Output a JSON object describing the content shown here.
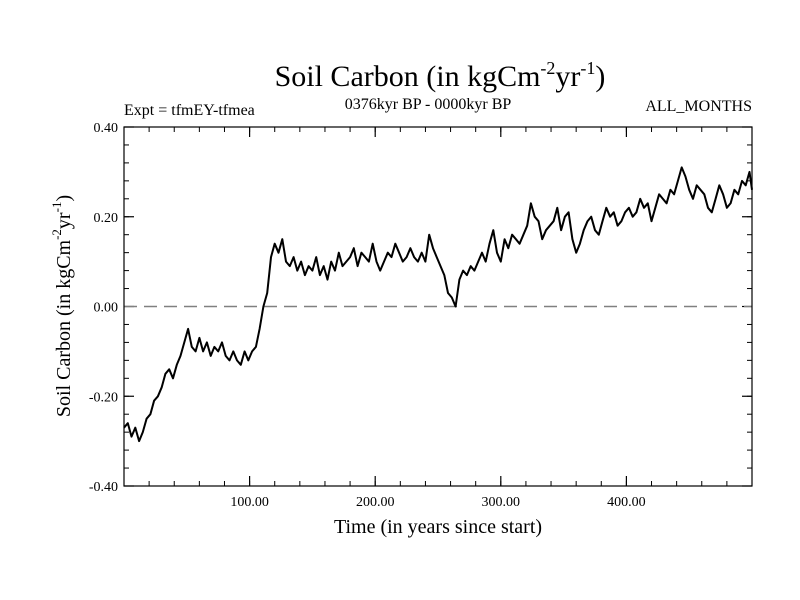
{
  "chart_data": {
    "type": "line",
    "title": "Soil Carbon (in kgCm",
    "title_sup1": "-2",
    "title_mid": "yr",
    "title_sup2": "-1",
    "title_end": ")",
    "left_label": "Expt = tfmEY-tfmea",
    "center_label": "0376kyr BP - 0000kyr BP",
    "right_label": "ALL_MONTHS",
    "xlabel": "Time (in years since start)",
    "ylabel": "Soil Carbon (in kgCm",
    "ylabel_sup1": "-2",
    "ylabel_mid": "yr",
    "ylabel_sup2": "-1",
    "ylabel_end": ")",
    "xlim": [
      0,
      500
    ],
    "ylim": [
      -0.4,
      0.4
    ],
    "x_ticks": [
      100,
      200,
      300,
      400
    ],
    "x_tick_labels": [
      "100.00",
      "200.00",
      "300.00",
      "400.00"
    ],
    "y_ticks": [
      -0.4,
      -0.2,
      0.0,
      0.2,
      0.4
    ],
    "y_tick_labels": [
      "-0.40",
      "-0.20",
      "0.00",
      "0.20",
      "0.40"
    ],
    "reference_line": {
      "y": 0.0,
      "style": "dashed",
      "color": "#808080"
    },
    "series": [
      {
        "color": "#000000",
        "x": [
          0,
          3,
          6,
          9,
          12,
          15,
          18,
          21,
          24,
          27,
          30,
          33,
          36,
          39,
          42,
          45,
          48,
          51,
          54,
          57,
          60,
          63,
          66,
          69,
          72,
          75,
          78,
          81,
          84,
          87,
          90,
          93,
          96,
          99,
          102,
          105,
          108,
          111,
          114,
          117,
          120,
          123,
          126,
          129,
          132,
          135,
          138,
          141,
          144,
          147,
          150,
          153,
          156,
          159,
          162,
          165,
          168,
          171,
          174,
          177,
          180,
          183,
          186,
          189,
          192,
          195,
          198,
          201,
          204,
          207,
          210,
          213,
          216,
          219,
          222,
          225,
          228,
          231,
          234,
          237,
          240,
          243,
          246,
          249,
          252,
          255,
          258,
          261,
          264,
          267,
          270,
          273,
          276,
          279,
          282,
          285,
          288,
          291,
          294,
          297,
          300,
          303,
          306,
          309,
          312,
          315,
          318,
          321,
          324,
          327,
          330,
          333,
          336,
          339,
          342,
          345,
          348,
          351,
          354,
          357,
          360,
          363,
          366,
          369,
          372,
          375,
          378,
          381,
          384,
          387,
          390,
          393,
          396,
          399,
          402,
          405,
          408,
          411,
          414,
          417,
          420,
          423,
          426,
          429,
          432,
          435,
          438,
          441,
          444,
          447,
          450,
          453,
          456,
          459,
          462,
          465,
          468,
          471,
          474,
          477,
          480,
          483,
          486,
          489,
          492,
          495,
          498,
          500
        ],
        "y": [
          -0.27,
          -0.26,
          -0.29,
          -0.27,
          -0.3,
          -0.28,
          -0.25,
          -0.24,
          -0.21,
          -0.2,
          -0.18,
          -0.15,
          -0.14,
          -0.16,
          -0.13,
          -0.11,
          -0.08,
          -0.05,
          -0.09,
          -0.1,
          -0.07,
          -0.1,
          -0.08,
          -0.11,
          -0.09,
          -0.1,
          -0.08,
          -0.11,
          -0.12,
          -0.1,
          -0.12,
          -0.13,
          -0.1,
          -0.12,
          -0.1,
          -0.09,
          -0.05,
          0.0,
          0.03,
          0.11,
          0.14,
          0.12,
          0.15,
          0.1,
          0.09,
          0.11,
          0.08,
          0.1,
          0.07,
          0.09,
          0.08,
          0.11,
          0.07,
          0.09,
          0.06,
          0.1,
          0.08,
          0.12,
          0.09,
          0.1,
          0.11,
          0.13,
          0.09,
          0.12,
          0.11,
          0.1,
          0.14,
          0.1,
          0.08,
          0.1,
          0.12,
          0.11,
          0.14,
          0.12,
          0.1,
          0.11,
          0.13,
          0.11,
          0.1,
          0.12,
          0.1,
          0.16,
          0.13,
          0.11,
          0.09,
          0.07,
          0.03,
          0.02,
          0.0,
          0.06,
          0.08,
          0.07,
          0.09,
          0.08,
          0.1,
          0.12,
          0.1,
          0.14,
          0.17,
          0.12,
          0.1,
          0.15,
          0.13,
          0.16,
          0.15,
          0.14,
          0.16,
          0.18,
          0.23,
          0.2,
          0.19,
          0.15,
          0.17,
          0.18,
          0.19,
          0.22,
          0.17,
          0.2,
          0.21,
          0.15,
          0.12,
          0.14,
          0.17,
          0.19,
          0.2,
          0.17,
          0.16,
          0.19,
          0.22,
          0.2,
          0.21,
          0.18,
          0.19,
          0.21,
          0.22,
          0.2,
          0.21,
          0.24,
          0.22,
          0.23,
          0.19,
          0.22,
          0.25,
          0.24,
          0.23,
          0.26,
          0.25,
          0.28,
          0.31,
          0.29,
          0.26,
          0.24,
          0.27,
          0.26,
          0.25,
          0.22,
          0.21,
          0.24,
          0.27,
          0.25,
          0.22,
          0.23,
          0.26,
          0.25,
          0.28,
          0.27,
          0.3,
          0.26
        ]
      }
    ]
  }
}
